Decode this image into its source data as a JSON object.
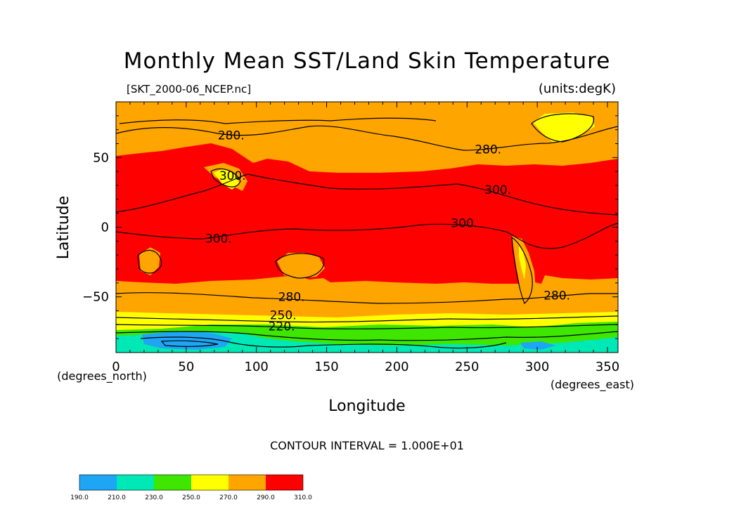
{
  "chart_data": {
    "type": "heatmap",
    "title": "Monthly Mean SST/Land Skin Temperature",
    "file_label": "[SKT_2000-06_NCEP.nc]",
    "units_label": "(units:degK)",
    "xlabel": "Longitude",
    "ylabel": "Latitude",
    "x_unit": "(degrees_east)",
    "y_unit": "(degrees_north)",
    "xlim": [
      0,
      357.5
    ],
    "ylim": [
      -90,
      90
    ],
    "x_ticks": [
      0,
      50,
      100,
      150,
      200,
      250,
      300,
      350
    ],
    "y_ticks": [
      -50,
      0,
      50
    ],
    "contour_interval_text": "CONTOUR INTERVAL = 1.000E+01",
    "contour_labels": [
      {
        "text": "280.",
        "lon": 82,
        "lat": 66
      },
      {
        "text": "280.",
        "lon": 265,
        "lat": 56
      },
      {
        "text": "300.",
        "lon": 83,
        "lat": 37
      },
      {
        "text": "300.",
        "lon": 272,
        "lat": 27
      },
      {
        "text": "300.",
        "lon": 73,
        "lat": -8
      },
      {
        "text": "300.",
        "lon": 248,
        "lat": 3
      },
      {
        "text": "280.",
        "lon": 125,
        "lat": -50
      },
      {
        "text": "280.",
        "lon": 314,
        "lat": -49
      },
      {
        "text": "250.",
        "lon": 119,
        "lat": -63
      },
      {
        "text": "220.",
        "lon": 118,
        "lat": -71
      }
    ],
    "colorbar": {
      "levels": [
        190.0,
        210.0,
        230.0,
        250.0,
        270.0,
        290.0,
        310.0
      ],
      "tick_labels": [
        "190.0",
        "210.0",
        "230.0",
        "250.0",
        "270.0",
        "290.0",
        "310.0"
      ],
      "colors": [
        "#1ea6f5",
        "#00e8b5",
        "#3ee600",
        "#ffff00",
        "#ffa500",
        "#ff0000"
      ]
    }
  }
}
